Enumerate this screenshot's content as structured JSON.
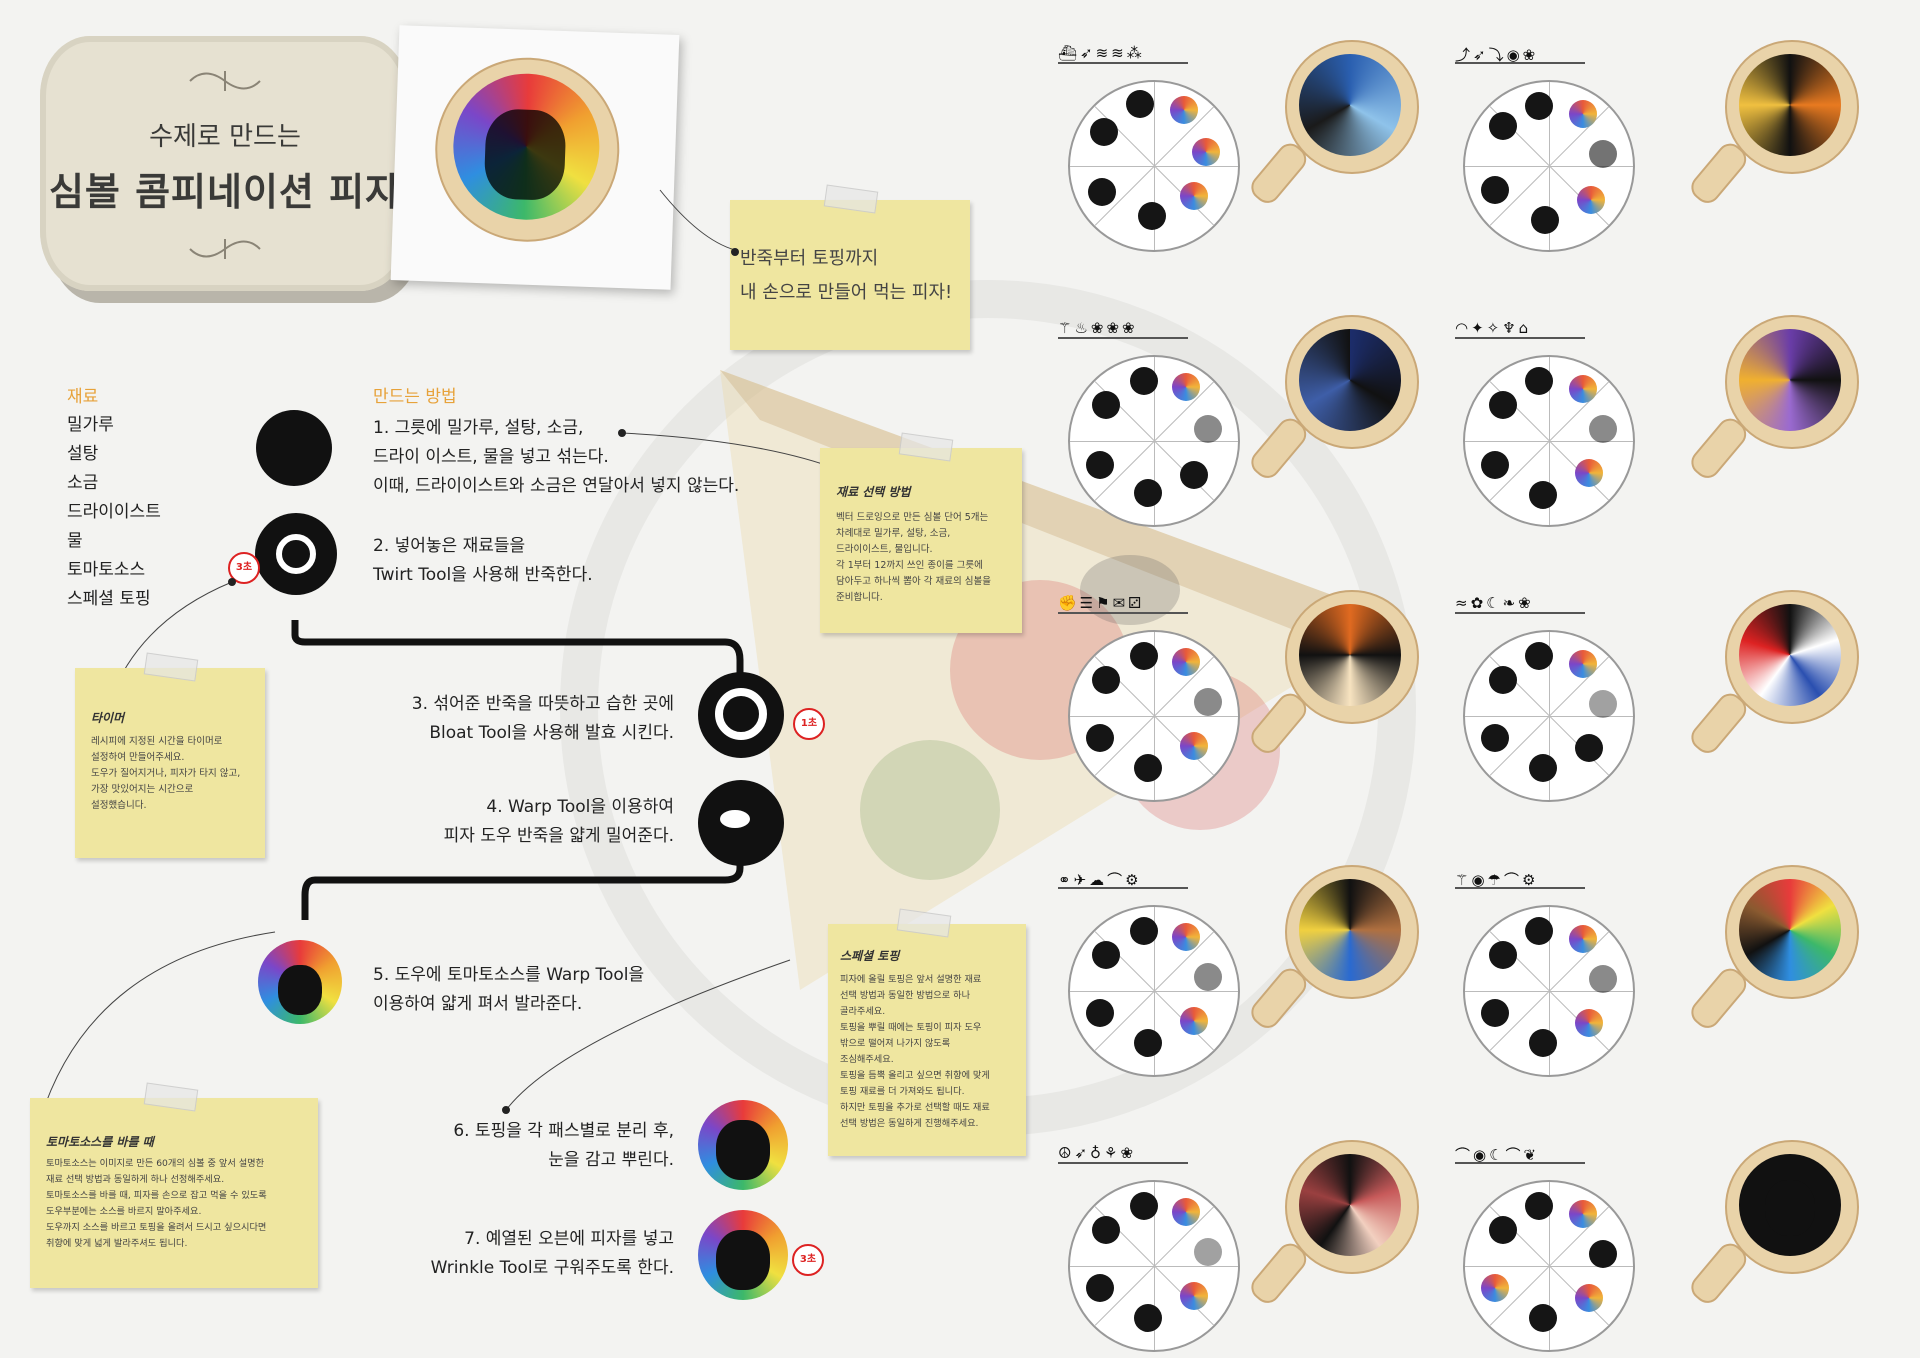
{
  "title": {
    "line1": "수제로 만드는",
    "line2": "심볼 콤피네이션 피자"
  },
  "hero_note": {
    "line1": "반죽부터 토핑까지",
    "line2": "내 손으로 만들어 먹는 피자!"
  },
  "ingredients": {
    "heading": "재료",
    "items": [
      "밀가루",
      "설탕",
      "소금",
      "드라이이스트",
      "물",
      "토마토소스",
      "스페셜 토핑"
    ]
  },
  "method": {
    "heading": "만드는 방법",
    "steps": [
      {
        "line1": "1. 그릇에 밀가루, 설탕, 소금,",
        "line2": "드라이 이스트, 물을 넣고 섞는다.",
        "line3": "이때, 드라이이스트와 소금은 연달아서 넣지 않는다."
      },
      {
        "line1": "2. 넣어놓은 재료들을",
        "line2": "Twirt Tool을 사용해 반죽한다."
      },
      {
        "line1": "3. 섞어준 반죽을 따뜻하고 습한 곳에",
        "line2": "Bloat Tool을 사용해 발효 시킨다."
      },
      {
        "line1": "4. Warp Tool을 이용하여",
        "line2": "피자 도우 반죽을 얇게 밀어준다."
      },
      {
        "line1": "5. 도우에 토마토소스를 Warp Tool을",
        "line2": "이용하여 얇게 펴서 발라준다."
      },
      {
        "line1": "6. 토핑을 각 패스별로 분리 후,",
        "line2": "눈을 감고 뿌린다."
      },
      {
        "line1": "7. 예열된 오븐에 피자를 넣고",
        "line2": "Wrinkle Tool로 구워주도록 한다."
      }
    ]
  },
  "timers": {
    "t1": "3초",
    "t2": "1초",
    "t3": "3초"
  },
  "notes": {
    "select": {
      "title": "재료 선택 방법",
      "body": [
        "벡터 드로잉으로 만든 심볼 단어 5개는",
        "차례대로 밀가루, 설탕, 소금,",
        "드라이이스트, 물입니다.",
        "각 1부터 12까지 쓰인 종이를 그릇에",
        "담아두고 하나씩 뽑아 각 재료의 심볼을",
        "준비합니다."
      ]
    },
    "timer": {
      "title": "타이머",
      "body": [
        "레시피에 지정된 시간을 타이머로",
        "설정하여 만들어주세요.",
        "도우가 질어지거나, 피자가 타지 않고,",
        "가장 맛있어지는 시간으로",
        "설정했습니다."
      ]
    },
    "topping": {
      "title": "스페셜 토핑",
      "body": [
        "피자에 올릴 토핑은 앞서 설명한 재료",
        "선택 방법과 동일한 방법으로 하나",
        "골라주세요.",
        "토핑을 뿌릴 때에는 토핑이 피자 도우",
        "밖으로 떨어져 나가지 않도록",
        "조심해주세요.",
        "토핑을 듬뿍 올리고 싶으면 취향에 맞게",
        "토핑 재료를 더 가져와도 됩니다.",
        "하지만 토핑을 추가로 선택할 때도 재료",
        "선택 방법은 동일하게 진행해주세요."
      ]
    },
    "sauce": {
      "title": "토마토소스를 바를 때",
      "body": [
        "토마토소스는 이미지로 만든 60개의 심볼 중 앞서 설명한",
        "재료 선택 방법과 동일하게 하나 선정해주세요.",
        "토마토소스를 바를 때, 피자를 손으로 잡고 먹을 수 있도록",
        "도우부분에는 소스를 바르지 말아주세요.",
        "도우까지 소스를 바르고 토핑을 올려서 드시고 싶으시다면",
        "취향에 맞게 넓게 발라주셔도 됩니다."
      ]
    }
  },
  "wheel_icons": [
    "⛴➶≋≋⁂",
    "⤴➶⤵◉❀",
    "⚚♨❀❀❀",
    "◠✦✧♆⌂",
    "✊☰⚑✉⚂",
    "≈✿☾❧❀",
    "⚭✈☁⌒⚙",
    "⚚◉☂⌒⚙",
    "☮➶♁⚘❀",
    "⌒◉☾⌒❦"
  ],
  "colors": {
    "accent": "#e7a23a",
    "note": "#efe6a0",
    "timer": "#dd2222"
  }
}
